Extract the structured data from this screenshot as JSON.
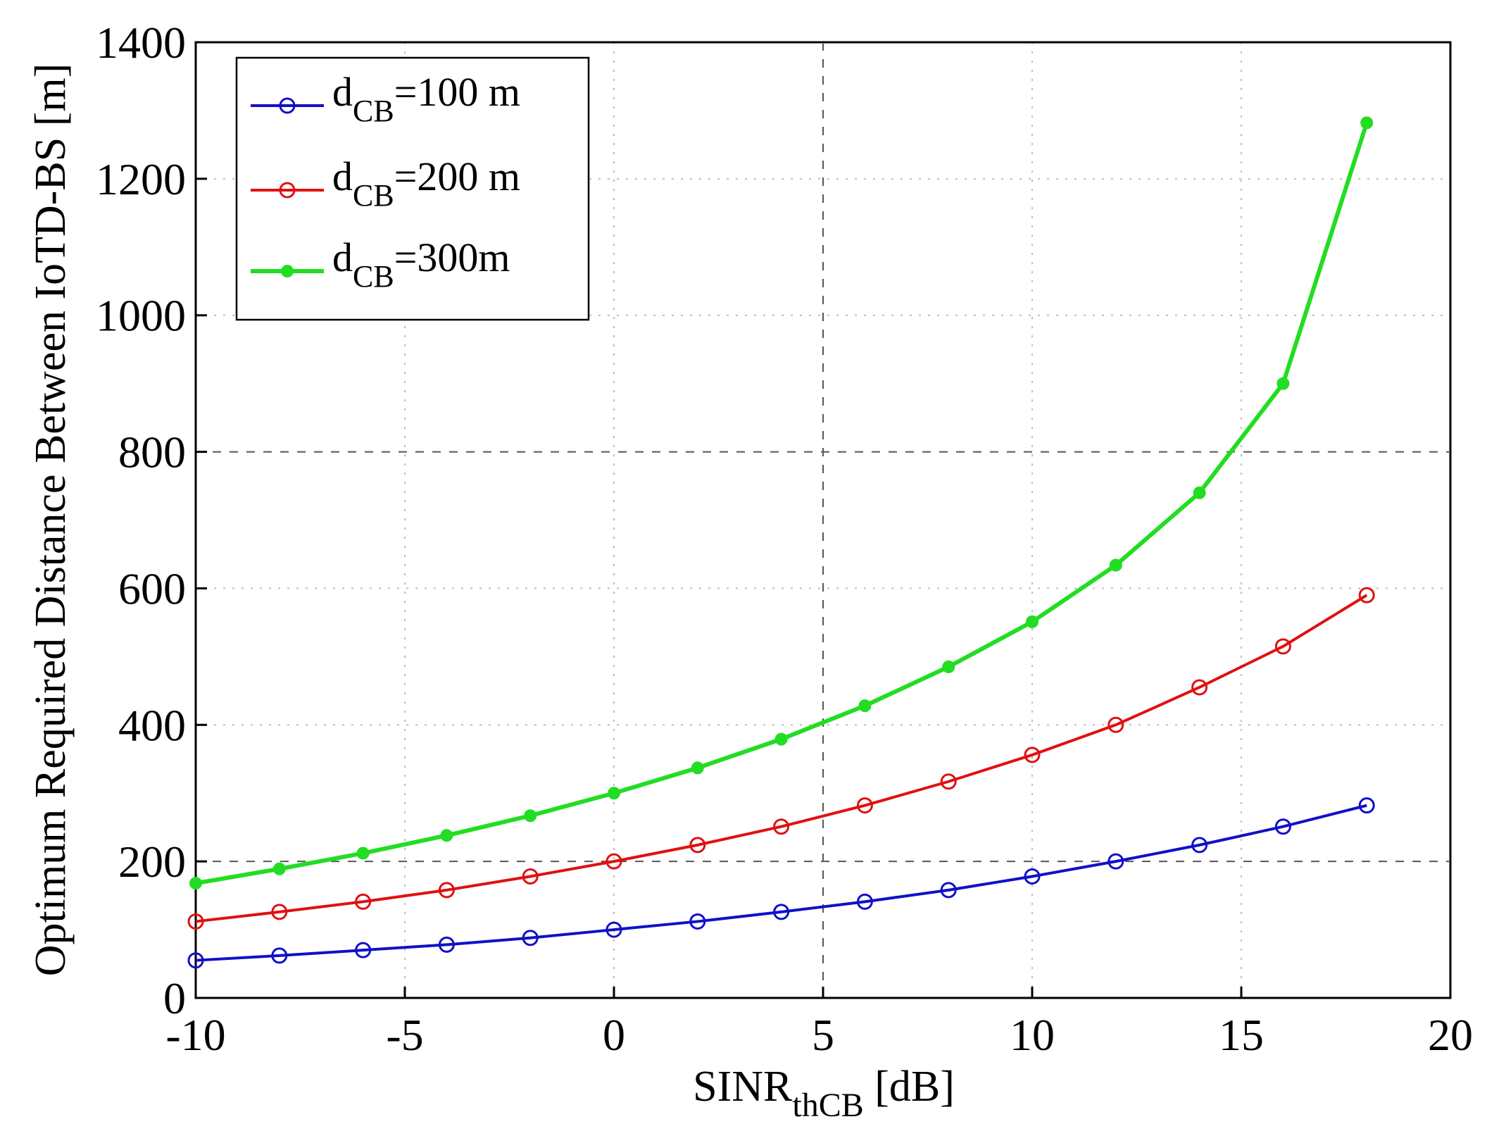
{
  "chart_data": {
    "type": "line",
    "title": "",
    "xlabel_main": "SINR",
    "xlabel_sub": "thCB",
    "xlabel_suffix": " [dB]",
    "ylabel": "Optimum Required Distance Between IoTD-BS [m]",
    "xlim": [
      -10,
      20
    ],
    "ylim": [
      0,
      1400
    ],
    "xticks": [
      -10,
      -5,
      0,
      5,
      10,
      15,
      20
    ],
    "yticks": [
      0,
      200,
      400,
      600,
      800,
      1000,
      1200,
      1400
    ],
    "xtick_labels": [
      "-10",
      "-5",
      "0",
      "5",
      "10",
      "15",
      "20"
    ],
    "ytick_labels": [
      "0",
      "200",
      "400",
      "600",
      "800",
      "1000",
      "1200",
      "1400"
    ],
    "grid": true,
    "legend_position": "top-left",
    "x": [
      -10,
      -8,
      -6,
      -4,
      -2,
      0,
      2,
      4,
      6,
      8,
      10,
      12,
      14,
      16,
      18
    ],
    "series": [
      {
        "name": "d_CB=100 m",
        "legend_main": "d",
        "legend_sub": "CB",
        "legend_suffix": "=100 m",
        "color": "#1010c8",
        "marker": "circle",
        "values": [
          55,
          62,
          70,
          78,
          88,
          100,
          112,
          126,
          141,
          158,
          178,
          200,
          224,
          251,
          282
        ]
      },
      {
        "name": "d_CB=200 m",
        "legend_main": "d",
        "legend_sub": "CB",
        "legend_suffix": "=200 m",
        "color": "#e01010",
        "marker": "circle",
        "values": [
          112,
          126,
          141,
          158,
          178,
          200,
          224,
          251,
          282,
          317,
          356,
          400,
          455,
          515,
          590
        ]
      },
      {
        "name": "d_CB=300m",
        "legend_main": "d",
        "legend_sub": "CB",
        "legend_suffix": "=300m",
        "color": "#22dd22",
        "marker": "dot",
        "values": [
          168,
          189,
          212,
          238,
          267,
          300,
          337,
          379,
          428,
          485,
          551,
          634,
          740,
          900,
          1282
        ]
      }
    ]
  }
}
